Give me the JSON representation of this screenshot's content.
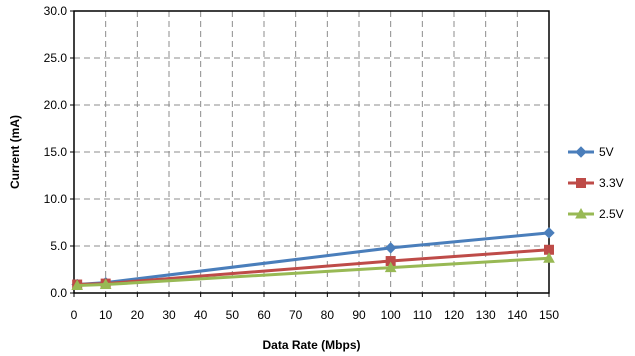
{
  "chart_data": {
    "type": "line",
    "title": "",
    "xlabel": "Data Rate (Mbps)",
    "ylabel": "Current (mA)",
    "xlim": [
      0,
      150
    ],
    "ylim": [
      0,
      30
    ],
    "x_ticks": [
      "0",
      "10",
      "20",
      "30",
      "40",
      "50",
      "60",
      "70",
      "80",
      "90",
      "100",
      "110",
      "120",
      "130",
      "140",
      "150"
    ],
    "y_ticks": [
      "0.0",
      "5.0",
      "10.0",
      "15.0",
      "20.0",
      "25.0",
      "30.0"
    ],
    "grid": "dashed, both axes",
    "legend_position": "right",
    "series": [
      {
        "name": "5V",
        "color": "#4a7ebb",
        "marker": "diamond",
        "x": [
          1,
          10,
          100,
          150
        ],
        "y": [
          0.9,
          1.1,
          4.8,
          6.4
        ]
      },
      {
        "name": "3.3V",
        "color": "#be4b48",
        "marker": "square",
        "x": [
          1,
          10,
          100,
          150
        ],
        "y": [
          0.9,
          1.0,
          3.4,
          4.6
        ]
      },
      {
        "name": "2.5V",
        "color": "#98b954",
        "marker": "triangle",
        "x": [
          1,
          10,
          100,
          150
        ],
        "y": [
          0.8,
          0.9,
          2.7,
          3.7
        ]
      }
    ]
  }
}
